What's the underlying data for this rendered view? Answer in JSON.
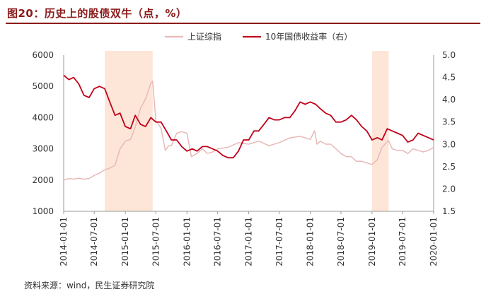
{
  "figure_title": "图20：历史上的股债双牛（点，%）",
  "source_note": "资料来源：wind，民生证券研究院",
  "colors": {
    "title": "#8b1a1a",
    "shcomp": "#e8b9b7",
    "bond": "#c0001a",
    "shade": "#fde6d8"
  },
  "chart_data": {
    "type": "line",
    "x_axis": {
      "type": "date",
      "range": [
        "2014-01-01",
        "2020-01-01"
      ],
      "tick_labels": [
        "2014-01-01",
        "2014-07-01",
        "2015-01-01",
        "2015-07-01",
        "2016-01-01",
        "2016-07-01",
        "2017-01-01",
        "2017-07-01",
        "2018-01-01",
        "2018-07-01",
        "2019-01-01",
        "2019-07-01",
        "2020-01-01"
      ]
    },
    "y_left": {
      "range": [
        1000,
        6000
      ],
      "tick_labels": [
        "1000",
        "2000",
        "3000",
        "4000",
        "5000",
        "6000"
      ]
    },
    "y_right": {
      "range": [
        1.5,
        5.0
      ],
      "tick_labels": [
        "1.5",
        "2.0",
        "2.5",
        "3.0",
        "3.5",
        "4.0",
        "4.5",
        "5.0"
      ]
    },
    "shaded_periods": [
      {
        "start": "2014-09-01",
        "end": "2015-06-12"
      },
      {
        "start": "2019-01-01",
        "end": "2019-04-10"
      }
    ],
    "legend_position": "top-center",
    "series": [
      {
        "name": "上证综指",
        "axis": "left",
        "color": "#e8b9b7",
        "points": [
          [
            "2014-01-01",
            2000
          ],
          [
            "2014-02-01",
            2050
          ],
          [
            "2014-03-01",
            2030
          ],
          [
            "2014-04-01",
            2060
          ],
          [
            "2014-05-01",
            2030
          ],
          [
            "2014-06-01",
            2050
          ],
          [
            "2014-07-01",
            2150
          ],
          [
            "2014-08-01",
            2220
          ],
          [
            "2014-09-01",
            2330
          ],
          [
            "2014-10-01",
            2380
          ],
          [
            "2014-11-01",
            2480
          ],
          [
            "2014-12-01",
            3000
          ],
          [
            "2015-01-01",
            3250
          ],
          [
            "2015-02-01",
            3300
          ],
          [
            "2015-03-01",
            3700
          ],
          [
            "2015-04-01",
            4300
          ],
          [
            "2015-05-01",
            4600
          ],
          [
            "2015-06-01",
            5100
          ],
          [
            "2015-06-12",
            5170
          ],
          [
            "2015-07-01",
            3900
          ],
          [
            "2015-07-15",
            3800
          ],
          [
            "2015-08-01",
            3650
          ],
          [
            "2015-08-26",
            2950
          ],
          [
            "2015-09-15",
            3100
          ],
          [
            "2015-10-01",
            3100
          ],
          [
            "2015-11-01",
            3500
          ],
          [
            "2015-12-01",
            3550
          ],
          [
            "2016-01-01",
            3500
          ],
          [
            "2016-01-27",
            2750
          ],
          [
            "2016-03-01",
            2850
          ],
          [
            "2016-04-01",
            3000
          ],
          [
            "2016-05-01",
            2850
          ],
          [
            "2016-06-01",
            2900
          ],
          [
            "2016-07-01",
            3000
          ],
          [
            "2016-09-01",
            3050
          ],
          [
            "2016-11-01",
            3200
          ],
          [
            "2017-01-01",
            3150
          ],
          [
            "2017-03-01",
            3250
          ],
          [
            "2017-05-01",
            3100
          ],
          [
            "2017-07-01",
            3200
          ],
          [
            "2017-09-01",
            3350
          ],
          [
            "2017-11-01",
            3400
          ],
          [
            "2018-01-01",
            3300
          ],
          [
            "2018-01-26",
            3580
          ],
          [
            "2018-02-09",
            3150
          ],
          [
            "2018-03-01",
            3250
          ],
          [
            "2018-04-01",
            3150
          ],
          [
            "2018-05-01",
            3150
          ],
          [
            "2018-06-01",
            3000
          ],
          [
            "2018-07-01",
            2850
          ],
          [
            "2018-08-01",
            2750
          ],
          [
            "2018-09-01",
            2750
          ],
          [
            "2018-10-01",
            2600
          ],
          [
            "2018-11-01",
            2600
          ],
          [
            "2018-12-01",
            2550
          ],
          [
            "2019-01-01",
            2500
          ],
          [
            "2019-02-01",
            2650
          ],
          [
            "2019-03-01",
            3050
          ],
          [
            "2019-04-08",
            3270
          ],
          [
            "2019-05-01",
            3000
          ],
          [
            "2019-06-01",
            2950
          ],
          [
            "2019-07-01",
            2950
          ],
          [
            "2019-08-01",
            2850
          ],
          [
            "2019-09-01",
            3000
          ],
          [
            "2019-10-01",
            2950
          ],
          [
            "2019-11-01",
            2900
          ],
          [
            "2019-12-01",
            2950
          ],
          [
            "2020-01-01",
            3050
          ]
        ]
      },
      {
        "name": "10年国债收益率（右）",
        "axis": "right",
        "color": "#c0001a",
        "points": [
          [
            "2014-01-01",
            4.55
          ],
          [
            "2014-02-01",
            4.45
          ],
          [
            "2014-03-01",
            4.5
          ],
          [
            "2014-04-01",
            4.35
          ],
          [
            "2014-05-01",
            4.1
          ],
          [
            "2014-06-01",
            4.05
          ],
          [
            "2014-07-01",
            4.25
          ],
          [
            "2014-08-01",
            4.3
          ],
          [
            "2014-09-01",
            4.25
          ],
          [
            "2014-10-01",
            3.95
          ],
          [
            "2014-11-01",
            3.65
          ],
          [
            "2014-12-01",
            3.7
          ],
          [
            "2015-01-01",
            3.4
          ],
          [
            "2015-02-01",
            3.35
          ],
          [
            "2015-03-01",
            3.65
          ],
          [
            "2015-04-01",
            3.45
          ],
          [
            "2015-05-01",
            3.4
          ],
          [
            "2015-06-01",
            3.6
          ],
          [
            "2015-07-01",
            3.5
          ],
          [
            "2015-08-01",
            3.5
          ],
          [
            "2015-09-01",
            3.3
          ],
          [
            "2015-10-01",
            3.1
          ],
          [
            "2015-11-01",
            3.1
          ],
          [
            "2015-12-01",
            2.95
          ],
          [
            "2016-01-01",
            2.85
          ],
          [
            "2016-02-01",
            2.9
          ],
          [
            "2016-03-01",
            2.85
          ],
          [
            "2016-04-01",
            2.95
          ],
          [
            "2016-05-01",
            2.95
          ],
          [
            "2016-06-01",
            2.9
          ],
          [
            "2016-07-01",
            2.85
          ],
          [
            "2016-08-01",
            2.75
          ],
          [
            "2016-09-01",
            2.7
          ],
          [
            "2016-10-01",
            2.7
          ],
          [
            "2016-11-01",
            2.85
          ],
          [
            "2016-12-01",
            3.1
          ],
          [
            "2017-01-01",
            3.1
          ],
          [
            "2017-02-01",
            3.3
          ],
          [
            "2017-03-01",
            3.3
          ],
          [
            "2017-04-01",
            3.45
          ],
          [
            "2017-05-01",
            3.6
          ],
          [
            "2017-06-01",
            3.55
          ],
          [
            "2017-07-01",
            3.55
          ],
          [
            "2017-08-01",
            3.6
          ],
          [
            "2017-09-01",
            3.6
          ],
          [
            "2017-10-01",
            3.75
          ],
          [
            "2017-11-01",
            3.95
          ],
          [
            "2017-12-01",
            3.9
          ],
          [
            "2018-01-01",
            3.95
          ],
          [
            "2018-02-01",
            3.9
          ],
          [
            "2018-03-01",
            3.8
          ],
          [
            "2018-04-01",
            3.7
          ],
          [
            "2018-05-01",
            3.65
          ],
          [
            "2018-06-01",
            3.5
          ],
          [
            "2018-07-01",
            3.5
          ],
          [
            "2018-08-01",
            3.55
          ],
          [
            "2018-09-01",
            3.65
          ],
          [
            "2018-10-01",
            3.55
          ],
          [
            "2018-11-01",
            3.4
          ],
          [
            "2018-12-01",
            3.3
          ],
          [
            "2019-01-01",
            3.1
          ],
          [
            "2019-02-01",
            3.15
          ],
          [
            "2019-03-01",
            3.1
          ],
          [
            "2019-04-01",
            3.35
          ],
          [
            "2019-05-01",
            3.3
          ],
          [
            "2019-06-01",
            3.25
          ],
          [
            "2019-07-01",
            3.2
          ],
          [
            "2019-08-01",
            3.05
          ],
          [
            "2019-09-01",
            3.1
          ],
          [
            "2019-10-01",
            3.25
          ],
          [
            "2019-11-01",
            3.2
          ],
          [
            "2019-12-01",
            3.15
          ],
          [
            "2020-01-01",
            3.1
          ]
        ]
      }
    ]
  }
}
